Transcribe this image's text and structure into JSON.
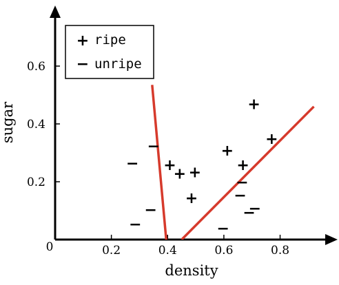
{
  "chart_data": {
    "type": "scatter",
    "xlabel": "density",
    "ylabel": "sugar",
    "origin_label": "0",
    "xlim": [
      0,
      0.98
    ],
    "ylim": [
      0,
      0.8
    ],
    "x_ticks": [
      0.2,
      0.4,
      0.6,
      0.8
    ],
    "x_tick_labels": [
      "0.2",
      "0.4",
      "0.6",
      "0.8"
    ],
    "y_ticks": [
      0.2,
      0.4,
      0.6
    ],
    "y_tick_labels": [
      "0.2",
      "0.4",
      "0.6"
    ],
    "legend_position": "top-left",
    "series": [
      {
        "name": "ripe",
        "marker": "+",
        "points": [
          [
            0.408,
            0.26
          ],
          [
            0.443,
            0.23
          ],
          [
            0.497,
            0.235
          ],
          [
            0.485,
            0.145
          ],
          [
            0.612,
            0.31
          ],
          [
            0.668,
            0.26
          ],
          [
            0.707,
            0.47
          ],
          [
            0.77,
            0.35
          ]
        ]
      },
      {
        "name": "unripe",
        "marker": "−",
        "points": [
          [
            0.275,
            0.265
          ],
          [
            0.35,
            0.325
          ],
          [
            0.34,
            0.105
          ],
          [
            0.285,
            0.055
          ],
          [
            0.665,
            0.2
          ],
          [
            0.658,
            0.155
          ],
          [
            0.69,
            0.095
          ],
          [
            0.71,
            0.11
          ],
          [
            0.597,
            0.04
          ]
        ]
      }
    ],
    "lines": [
      {
        "name": "boundary-left",
        "color": "#d63a2c",
        "points": [
          [
            0.345,
            0.535
          ],
          [
            0.395,
            0.0
          ]
        ]
      },
      {
        "name": "boundary-right",
        "color": "#d63a2c",
        "points": [
          [
            0.45,
            0.0
          ],
          [
            0.92,
            0.46
          ]
        ]
      }
    ]
  }
}
